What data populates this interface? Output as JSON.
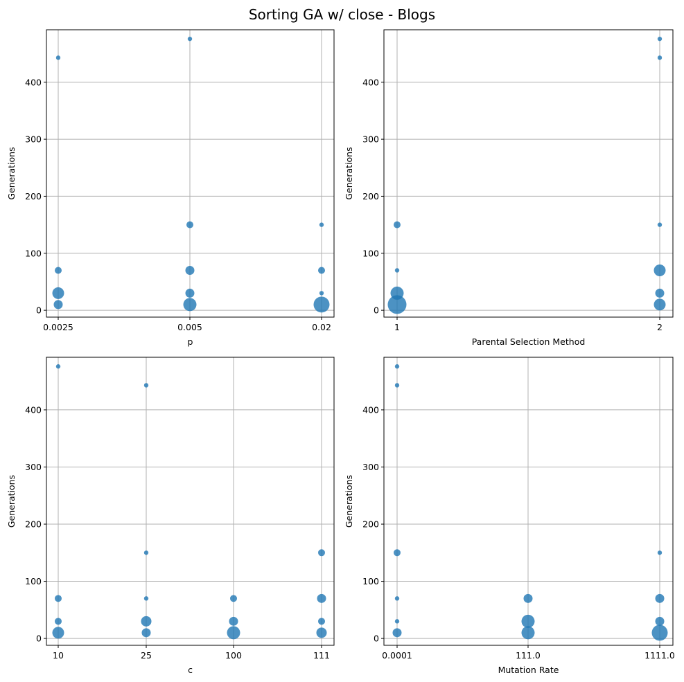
{
  "figure": {
    "title": "Sorting GA w/ close - Blogs"
  },
  "colors": {
    "marker": "#1f77b4",
    "grid": "#b0b0b0",
    "axes": "#000000"
  },
  "chart_data": [
    {
      "type": "scatter",
      "xlabel": "p",
      "ylabel": "Generations",
      "x_categories": [
        "0.0025",
        "0.005",
        "0.02"
      ],
      "yticks": [
        0,
        100,
        200,
        300,
        400
      ],
      "ylim": [
        -12,
        492
      ],
      "grid": true,
      "points": [
        {
          "x": "0.0025",
          "y": 443,
          "size": 1
        },
        {
          "x": "0.0025",
          "y": 70,
          "size": 2
        },
        {
          "x": "0.0025",
          "y": 30,
          "size": 5
        },
        {
          "x": "0.0025",
          "y": 10,
          "size": 3
        },
        {
          "x": "0.005",
          "y": 476,
          "size": 1
        },
        {
          "x": "0.005",
          "y": 150,
          "size": 2
        },
        {
          "x": "0.005",
          "y": 70,
          "size": 3
        },
        {
          "x": "0.005",
          "y": 30,
          "size": 3
        },
        {
          "x": "0.005",
          "y": 10,
          "size": 6
        },
        {
          "x": "0.02",
          "y": 150,
          "size": 1
        },
        {
          "x": "0.02",
          "y": 70,
          "size": 2
        },
        {
          "x": "0.02",
          "y": 30,
          "size": 1
        },
        {
          "x": "0.02",
          "y": 10,
          "size": 8
        }
      ]
    },
    {
      "type": "scatter",
      "xlabel": "Parental Selection Method",
      "ylabel": "Generations",
      "x_categories": [
        "1",
        "2"
      ],
      "yticks": [
        0,
        100,
        200,
        300,
        400
      ],
      "ylim": [
        -12,
        492
      ],
      "grid": true,
      "points": [
        {
          "x": "1",
          "y": 150,
          "size": 2
        },
        {
          "x": "1",
          "y": 70,
          "size": 1
        },
        {
          "x": "1",
          "y": 30,
          "size": 6
        },
        {
          "x": "1",
          "y": 10,
          "size": 11
        },
        {
          "x": "2",
          "y": 476,
          "size": 1
        },
        {
          "x": "2",
          "y": 443,
          "size": 1
        },
        {
          "x": "2",
          "y": 150,
          "size": 1
        },
        {
          "x": "2",
          "y": 70,
          "size": 5
        },
        {
          "x": "2",
          "y": 30,
          "size": 3
        },
        {
          "x": "2",
          "y": 10,
          "size": 5
        }
      ]
    },
    {
      "type": "scatter",
      "xlabel": "c",
      "ylabel": "Generations",
      "x_categories": [
        "10",
        "25",
        "100",
        "111"
      ],
      "yticks": [
        0,
        100,
        200,
        300,
        400
      ],
      "ylim": [
        -12,
        492
      ],
      "grid": true,
      "points": [
        {
          "x": "10",
          "y": 476,
          "size": 1
        },
        {
          "x": "10",
          "y": 70,
          "size": 2
        },
        {
          "x": "10",
          "y": 30,
          "size": 2
        },
        {
          "x": "10",
          "y": 10,
          "size": 5
        },
        {
          "x": "25",
          "y": 443,
          "size": 1
        },
        {
          "x": "25",
          "y": 150,
          "size": 1
        },
        {
          "x": "25",
          "y": 70,
          "size": 1
        },
        {
          "x": "25",
          "y": 30,
          "size": 4
        },
        {
          "x": "25",
          "y": 10,
          "size": 3
        },
        {
          "x": "100",
          "y": 70,
          "size": 2
        },
        {
          "x": "100",
          "y": 30,
          "size": 3
        },
        {
          "x": "100",
          "y": 10,
          "size": 6
        },
        {
          "x": "111",
          "y": 150,
          "size": 2
        },
        {
          "x": "111",
          "y": 70,
          "size": 3
        },
        {
          "x": "111",
          "y": 30,
          "size": 2
        },
        {
          "x": "111",
          "y": 10,
          "size": 4
        }
      ]
    },
    {
      "type": "scatter",
      "xlabel": "Mutation Rate",
      "ylabel": "Generations",
      "x_categories": [
        "0.0001",
        "111.0",
        "1111.0"
      ],
      "yticks": [
        0,
        100,
        200,
        300,
        400
      ],
      "ylim": [
        -12,
        492
      ],
      "grid": true,
      "points": [
        {
          "x": "0.0001",
          "y": 476,
          "size": 1
        },
        {
          "x": "0.0001",
          "y": 443,
          "size": 1
        },
        {
          "x": "0.0001",
          "y": 150,
          "size": 2
        },
        {
          "x": "0.0001",
          "y": 70,
          "size": 1
        },
        {
          "x": "0.0001",
          "y": 30,
          "size": 1
        },
        {
          "x": "0.0001",
          "y": 10,
          "size": 3
        },
        {
          "x": "111.0",
          "y": 70,
          "size": 3
        },
        {
          "x": "111.0",
          "y": 30,
          "size": 6
        },
        {
          "x": "111.0",
          "y": 10,
          "size": 6
        },
        {
          "x": "1111.0",
          "y": 150,
          "size": 1
        },
        {
          "x": "1111.0",
          "y": 70,
          "size": 3
        },
        {
          "x": "1111.0",
          "y": 30,
          "size": 3
        },
        {
          "x": "1111.0",
          "y": 10,
          "size": 8
        }
      ]
    }
  ]
}
